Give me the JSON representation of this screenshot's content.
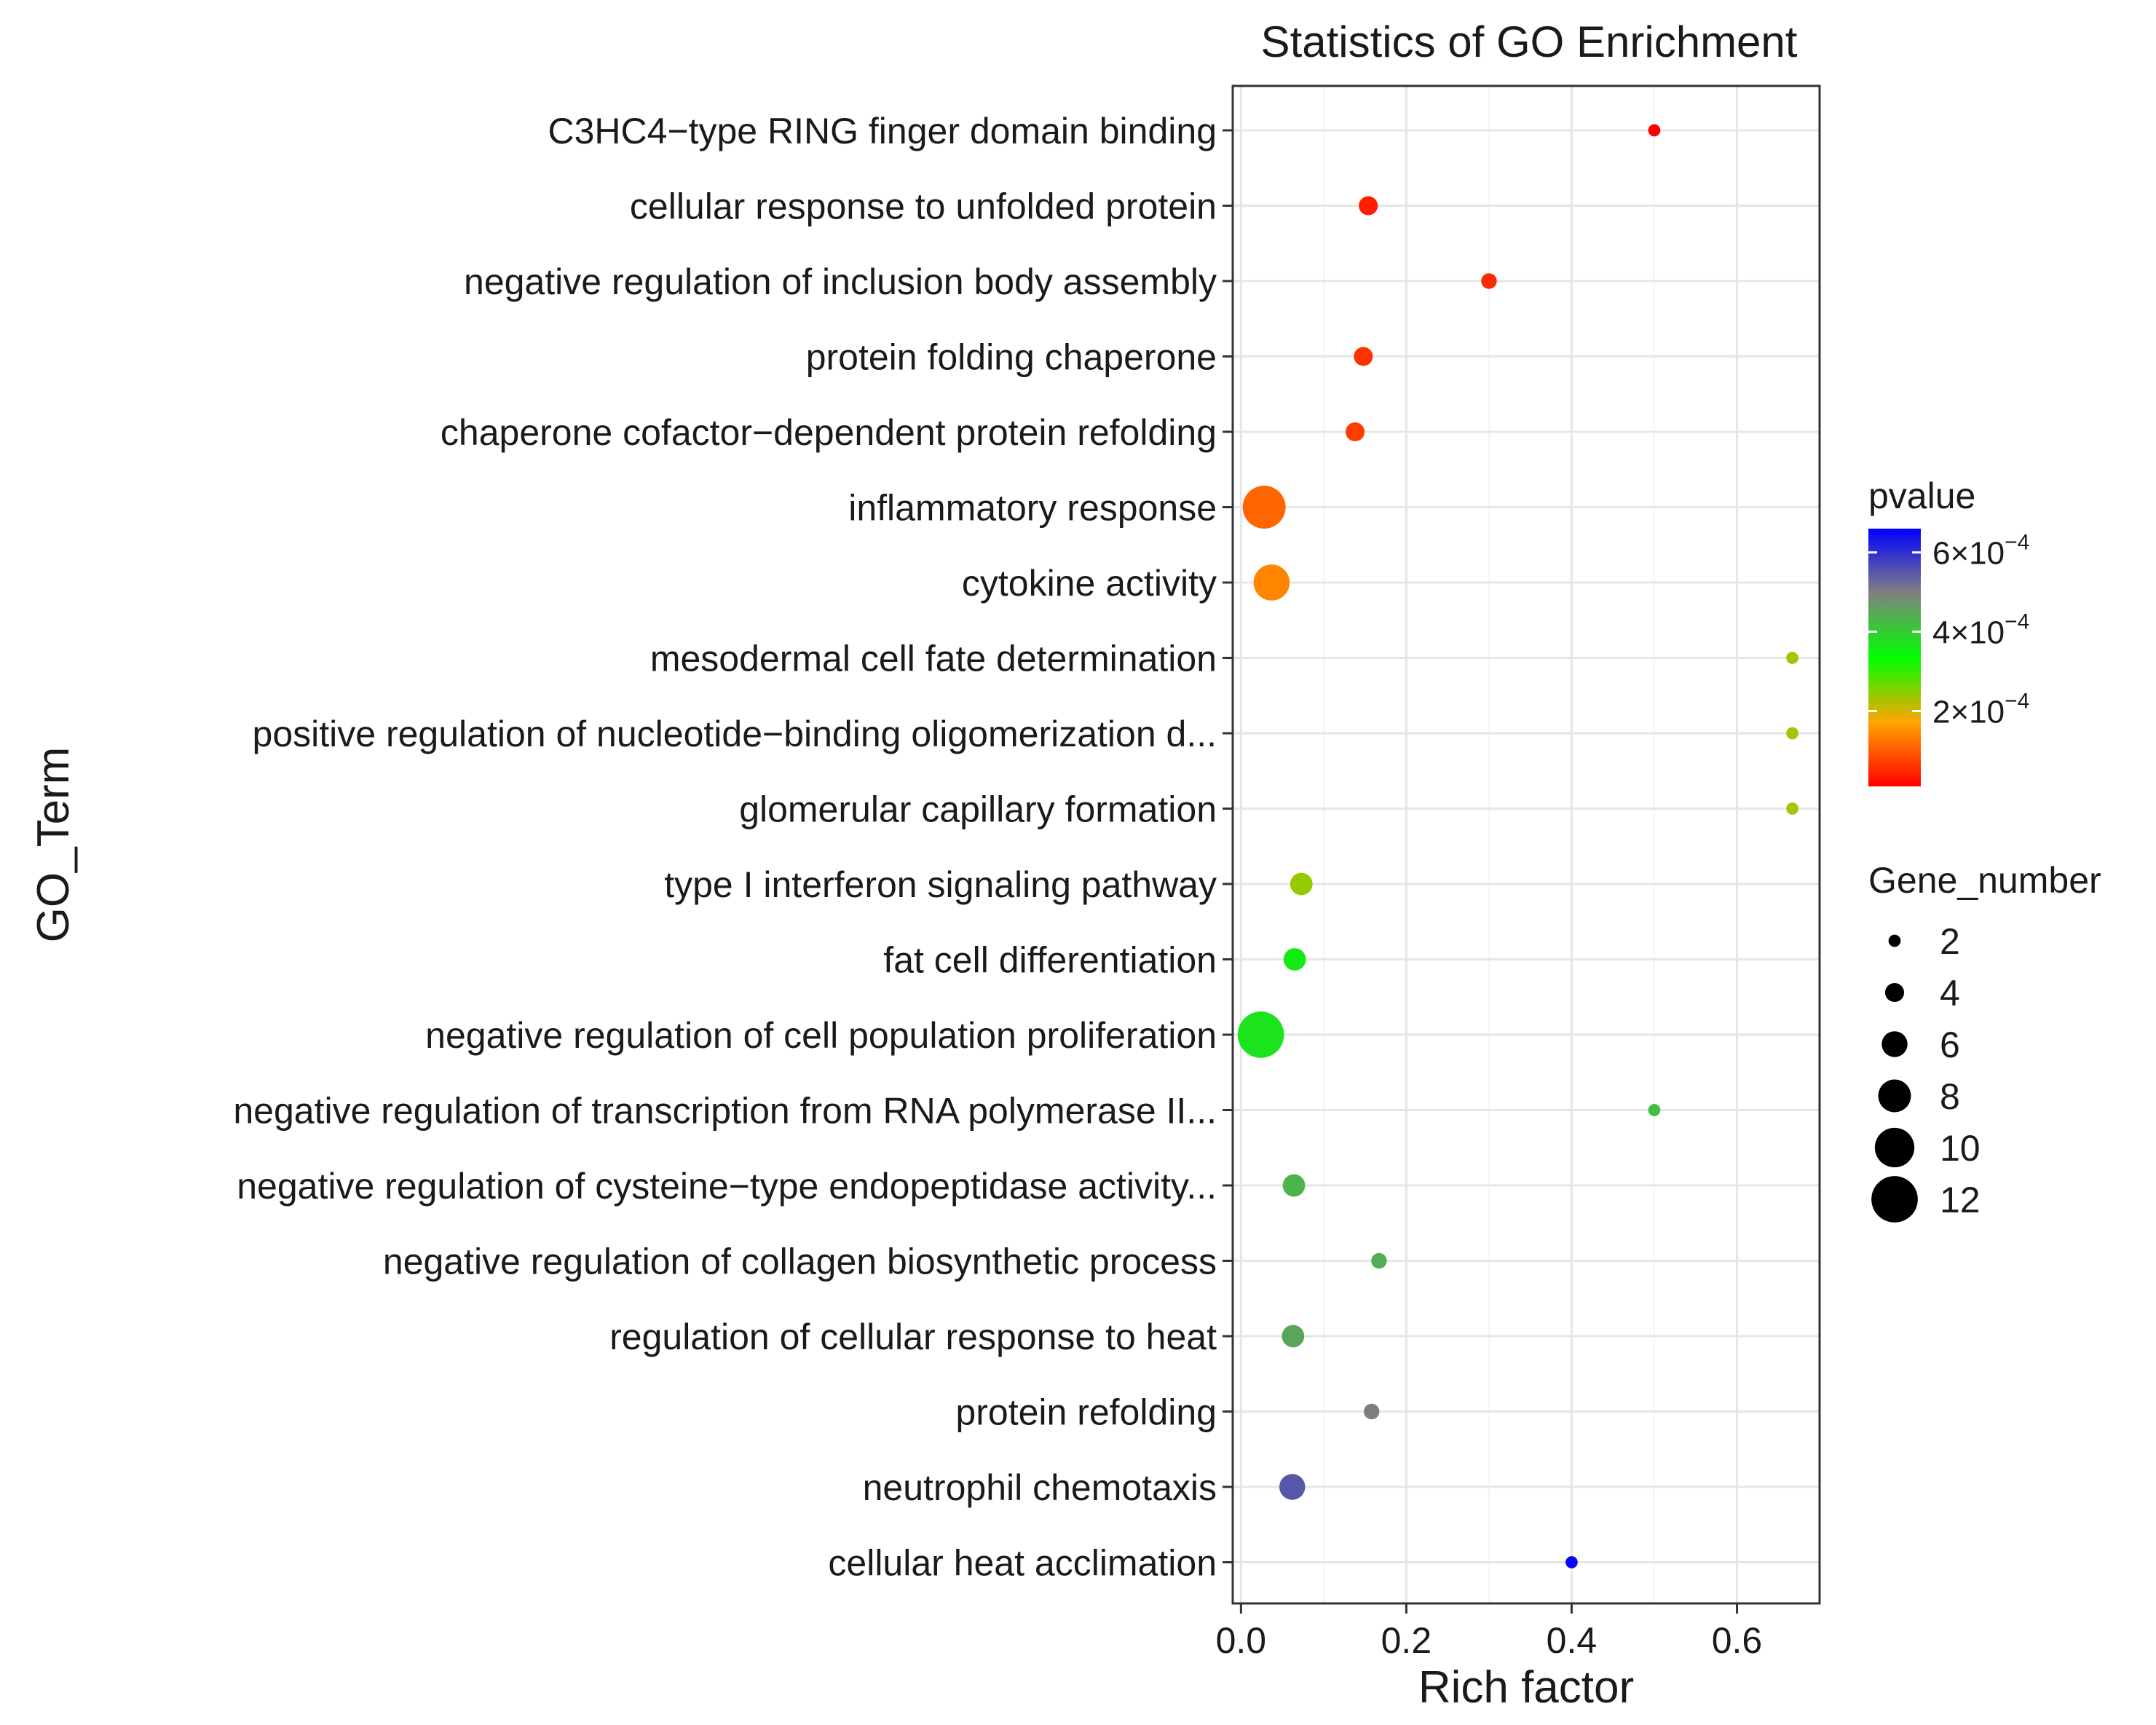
{
  "chart_data": {
    "type": "scatter",
    "title": "Statistics of GO Enrichment",
    "xlabel": "Rich factor",
    "ylabel": "GO_Term",
    "xlim": [
      -0.01,
      0.7
    ],
    "x_ticks": [
      {
        "value": 0.0,
        "label": "0.0"
      },
      {
        "value": 0.2,
        "label": "0.2"
      },
      {
        "value": 0.4,
        "label": "0.4"
      },
      {
        "value": 0.6,
        "label": "0.6"
      }
    ],
    "grid": true,
    "terms": [
      {
        "label": "C3HC4−type RING finger domain binding",
        "rich_factor": 0.5,
        "gene_number": 2,
        "pvalue": 1e-05
      },
      {
        "label": "cellular response to unfolded protein",
        "rich_factor": 0.154,
        "gene_number": 4,
        "pvalue": 4e-05
      },
      {
        "label": "negative regulation of inclusion body assembly",
        "rich_factor": 0.3,
        "gene_number": 3,
        "pvalue": 5e-05
      },
      {
        "label": "protein folding chaperone",
        "rich_factor": 0.148,
        "gene_number": 4,
        "pvalue": 6e-05
      },
      {
        "label": "chaperone cofactor−dependent protein refolding",
        "rich_factor": 0.138,
        "gene_number": 4,
        "pvalue": 7e-05
      },
      {
        "label": "inflammatory response",
        "rich_factor": 0.028,
        "gene_number": 11,
        "pvalue": 0.00011
      },
      {
        "label": "cytokine activity",
        "rich_factor": 0.037,
        "gene_number": 9,
        "pvalue": 0.00014
      },
      {
        "label": "mesodermal cell fate determination",
        "rich_factor": 0.667,
        "gene_number": 2,
        "pvalue": 0.00023
      },
      {
        "label": "positive regulation of nucleotide−binding oligomerization d...",
        "rich_factor": 0.667,
        "gene_number": 2,
        "pvalue": 0.00023
      },
      {
        "label": "glomerular capillary formation",
        "rich_factor": 0.667,
        "gene_number": 2,
        "pvalue": 0.00023
      },
      {
        "label": "type I interferon signaling pathway",
        "rich_factor": 0.073,
        "gene_number": 5,
        "pvalue": 0.00024
      },
      {
        "label": "fat cell differentiation",
        "rich_factor": 0.065,
        "gene_number": 5,
        "pvalue": 0.00036
      },
      {
        "label": "negative regulation of cell population proliferation",
        "rich_factor": 0.024,
        "gene_number": 12,
        "pvalue": 0.00037
      },
      {
        "label": "negative regulation of transcription from RNA polymerase II...",
        "rich_factor": 0.5,
        "gene_number": 2,
        "pvalue": 0.00042
      },
      {
        "label": "negative regulation of cysteine−type endopeptidase activity...",
        "rich_factor": 0.064,
        "gene_number": 5,
        "pvalue": 0.00043
      },
      {
        "label": "negative regulation of collagen biosynthetic process",
        "rich_factor": 0.167,
        "gene_number": 3,
        "pvalue": 0.00044
      },
      {
        "label": "regulation of cellular response to heat",
        "rich_factor": 0.063,
        "gene_number": 5,
        "pvalue": 0.00045
      },
      {
        "label": "protein refolding",
        "rich_factor": 0.158,
        "gene_number": 3,
        "pvalue": 0.0005
      },
      {
        "label": "neutrophil chemotaxis",
        "rich_factor": 0.062,
        "gene_number": 6,
        "pvalue": 0.00055
      },
      {
        "label": "cellular heat acclimation",
        "rich_factor": 0.4,
        "gene_number": 2,
        "pvalue": 0.00065
      }
    ],
    "legend": {
      "placement": "right",
      "color": {
        "title": "pvalue",
        "range": [
          1e-05,
          0.00066
        ],
        "ticks": [
          {
            "value": 0.0002,
            "label": "2×10",
            "exp": "−4"
          },
          {
            "value": 0.0004,
            "label": "4×10",
            "exp": "−4"
          },
          {
            "value": 0.0006,
            "label": "6×10",
            "exp": "−4"
          }
        ],
        "stops": [
          "#ff0000",
          "#ffa500",
          "#00ff00",
          "#808080",
          "#0000ff"
        ]
      },
      "size": {
        "title": "Gene_number",
        "entries": [
          {
            "value": 2,
            "label": "2"
          },
          {
            "value": 4,
            "label": "4"
          },
          {
            "value": 6,
            "label": "6"
          },
          {
            "value": 8,
            "label": "8"
          },
          {
            "value": 10,
            "label": "10"
          },
          {
            "value": 12,
            "label": "12"
          }
        ]
      }
    }
  }
}
